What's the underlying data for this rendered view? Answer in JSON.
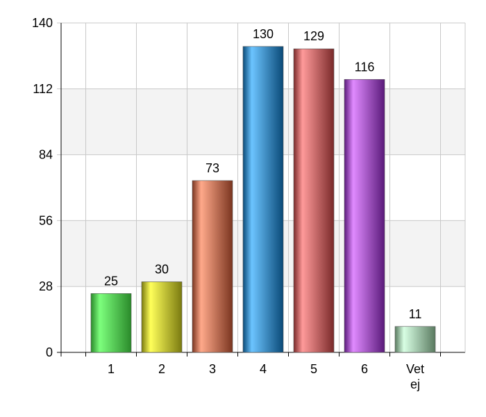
{
  "chart_data": {
    "type": "bar",
    "categories": [
      "1",
      "2",
      "3",
      "4",
      "5",
      "6",
      "Vet ej"
    ],
    "values": [
      25,
      30,
      73,
      130,
      129,
      116,
      11
    ],
    "ylim": [
      0,
      140
    ],
    "yticks": [
      0,
      28,
      56,
      84,
      112,
      140
    ],
    "grid": true,
    "legend": "none",
    "bar_colors": [
      [
        "#7dff7d",
        "#2a8a2a"
      ],
      [
        "#ffff5a",
        "#7a7a10"
      ],
      [
        "#ffa98a",
        "#7a3520"
      ],
      [
        "#6cc4ff",
        "#0a4a78"
      ],
      [
        "#ff9a9a",
        "#7a2a2a"
      ],
      [
        "#e08aff",
        "#5a1a7a"
      ],
      [
        "#d8ffe4",
        "#5a7a60"
      ]
    ],
    "band_color": "#f3f3f3",
    "grid_color": "#c8c8c8"
  }
}
